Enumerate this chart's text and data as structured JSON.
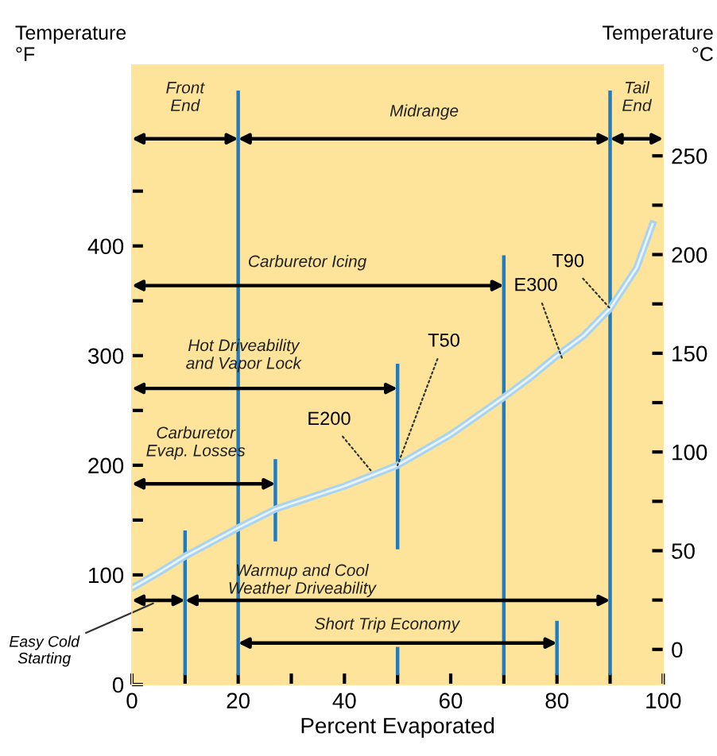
{
  "chart_data": {
    "type": "line",
    "xlabel": "Percent Evaporated",
    "ylabel": "Temperature\n°F",
    "y2label": "Temperature\n°C",
    "xlim": [
      0,
      100
    ],
    "ylim": [
      0,
      565
    ],
    "y2lim": [
      -17.8,
      296
    ],
    "xticks": [
      0,
      {
        "value": 10,
        "label": null
      },
      20,
      {
        "value": 30,
        "label": null
      },
      40,
      {
        "value": 50,
        "label": null
      },
      60,
      {
        "value": 70,
        "label": null
      },
      80,
      {
        "value": 90,
        "label": null
      },
      100
    ],
    "yticks": [
      0,
      {
        "value": 50,
        "label": null
      },
      100,
      {
        "value": 150,
        "label": null
      },
      200,
      {
        "value": 250,
        "label": null
      },
      300,
      {
        "value": 350,
        "label": null
      },
      400,
      {
        "value": 450,
        "label": null
      }
    ],
    "y2ticks": [
      0,
      {
        "value": 25,
        "label": null
      },
      50,
      {
        "value": 75,
        "label": null
      },
      100,
      {
        "value": 125,
        "label": null
      },
      150,
      {
        "value": 175,
        "label": null
      },
      200,
      {
        "value": 225,
        "label": null
      },
      250
    ],
    "grid": false,
    "legend": false,
    "line_style": "solid",
    "series": [
      {
        "color": "#a9d3ef",
        "x": [
          0,
          5,
          10,
          15,
          20,
          27,
          30,
          40,
          50,
          60,
          70,
          75,
          80,
          85,
          90,
          95,
          98
        ],
        "values": [
          88,
          102,
          117,
          130,
          143,
          160,
          165,
          181,
          200,
          228,
          262,
          280,
          300,
          318,
          343,
          380,
          420
        ]
      }
    ],
    "ref_lines": [
      {
        "axis": "x",
        "value": 20,
        "color": "#1f7cc0"
      },
      {
        "axis": "x",
        "value": 90,
        "color": "#1f7cc0"
      },
      {
        "axis": "x",
        "value": 70,
        "color": "#1f7cc0"
      },
      {
        "axis": "x",
        "value": 50,
        "color": "#1f7cc0"
      },
      {
        "axis": "x",
        "value": 27,
        "color": "#1f7cc0"
      },
      {
        "axis": "x",
        "value": 10,
        "color": "#1f7cc0"
      },
      {
        "axis": "x",
        "value": 80,
        "color": "#1f7cc0"
      }
    ],
    "annotations": [
      "Front\nEnd",
      "Midrange",
      "Tail\nEnd",
      "Carburetor Icing",
      "Hot Driveability\nand Vapor Lock",
      "Carburetor\nEvap. Losses",
      "Easy Cold\nStarting",
      "Warmup and Cool\nWeather Driveability",
      "Short Trip Economy",
      {
        "text": "T50",
        "x": 50,
        "y": 200
      },
      {
        "text": "E200",
        "x": 45,
        "y": 195
      },
      {
        "text": "T90",
        "x": 90,
        "y": 343
      },
      {
        "text": "E300",
        "x": 81,
        "y": 297
      }
    ]
  }
}
